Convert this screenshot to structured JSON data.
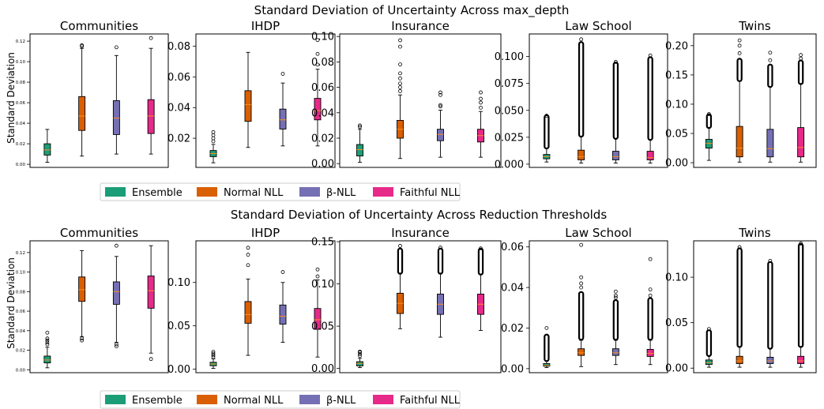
{
  "colors": {
    "Ensemble": "#1b9e77",
    "Normal NLL": "#d95f02",
    "β-NLL": "#7570b3",
    "Faithful NLL": "#e7298a",
    "median": "#ff8c1a"
  },
  "legend": {
    "placement": "below-row",
    "entries": [
      "Ensemble",
      "Normal NLL",
      "β-NLL",
      "Faithful NLL"
    ]
  },
  "rows": [
    {
      "title": "Standard Deviation of Uncertainty Across max_depth",
      "ylabel": "Standard Deviation"
    },
    {
      "title": "Standard Deviation of Uncertainty Across Reduction Thresholds",
      "ylabel": "Standard Deviation"
    }
  ],
  "chart_data": [
    {
      "type": "box",
      "row": 0,
      "col": 0,
      "title": "Communities",
      "ylabel": "Standard Deviation",
      "ylim": [
        -0.003,
        0.127
      ],
      "yticks": [
        0.0,
        0.02,
        0.04,
        0.06,
        0.08,
        0.1,
        0.12
      ],
      "tick_labels": [
        "0.00",
        "0.02",
        "0.04",
        "0.06",
        "0.08",
        "0.10",
        "0.12"
      ],
      "tick_size": "small",
      "series": [
        {
          "name": "Ensemble",
          "whislo": 0.002,
          "q1": 0.009,
          "med": 0.014,
          "q3": 0.02,
          "whishi": 0.034,
          "fliers": [],
          "dense": null
        },
        {
          "name": "Normal NLL",
          "whislo": 0.008,
          "q1": 0.033,
          "med": 0.047,
          "q3": 0.066,
          "whishi": 0.113,
          "fliers": [
            0.115,
            0.116
          ],
          "dense": null
        },
        {
          "name": "β-NLL",
          "whislo": 0.01,
          "q1": 0.029,
          "med": 0.045,
          "q3": 0.062,
          "whishi": 0.106,
          "fliers": [
            0.114
          ],
          "dense": null
        },
        {
          "name": "Faithful NLL",
          "whislo": 0.01,
          "q1": 0.03,
          "med": 0.047,
          "q3": 0.063,
          "whishi": 0.113,
          "fliers": [
            0.123
          ],
          "dense": null
        }
      ]
    },
    {
      "type": "box",
      "row": 0,
      "col": 1,
      "title": "IHDP",
      "ylim": [
        0.001,
        0.088
      ],
      "yticks": [
        0.02,
        0.04,
        0.06,
        0.08
      ],
      "tick_labels": [
        "0.02",
        "0.04",
        "0.06",
        "0.08"
      ],
      "tick_size": "normal",
      "series": [
        {
          "name": "Ensemble",
          "whislo": 0.004,
          "q1": 0.008,
          "med": 0.01,
          "q3": 0.012,
          "whishi": 0.016,
          "fliers": [
            0.018,
            0.02,
            0.022,
            0.024
          ],
          "dense": null
        },
        {
          "name": "Normal NLL",
          "whislo": 0.014,
          "q1": 0.031,
          "med": 0.042,
          "q3": 0.051,
          "whishi": 0.076,
          "fliers": [],
          "dense": null
        },
        {
          "name": "β-NLL",
          "whislo": 0.015,
          "q1": 0.026,
          "med": 0.032,
          "q3": 0.039,
          "whishi": 0.056,
          "fliers": [
            0.062
          ],
          "dense": null
        },
        {
          "name": "Faithful NLL",
          "whislo": 0.015,
          "q1": 0.032,
          "med": 0.038,
          "q3": 0.046,
          "whishi": 0.065,
          "fliers": [
            0.068,
            0.075,
            0.084
          ],
          "dense": null
        }
      ]
    },
    {
      "type": "box",
      "row": 0,
      "col": 2,
      "title": "Insurance",
      "ylim": [
        -0.003,
        0.102
      ],
      "yticks": [
        0.0,
        0.02,
        0.04,
        0.06,
        0.08,
        0.1
      ],
      "tick_labels": [
        "0.00",
        "0.02",
        "0.04",
        "0.06",
        "0.08",
        "0.10"
      ],
      "tick_size": "normal",
      "series": [
        {
          "name": "Ensemble",
          "whislo": 0.001,
          "q1": 0.006,
          "med": 0.011,
          "q3": 0.015,
          "whishi": 0.027,
          "fliers": [
            0.029,
            0.03
          ],
          "dense": null
        },
        {
          "name": "Normal NLL",
          "whislo": 0.004,
          "q1": 0.02,
          "med": 0.027,
          "q3": 0.034,
          "whishi": 0.054,
          "fliers": [
            0.057,
            0.06,
            0.063,
            0.067,
            0.071,
            0.078,
            0.092,
            0.097
          ],
          "dense": null
        },
        {
          "name": "β-NLL",
          "whislo": 0.005,
          "q1": 0.018,
          "med": 0.023,
          "q3": 0.027,
          "whishi": 0.042,
          "fliers": [
            0.045,
            0.046,
            0.054,
            0.056
          ],
          "dense": null
        },
        {
          "name": "Faithful NLL",
          "whislo": 0.005,
          "q1": 0.017,
          "med": 0.022,
          "q3": 0.027,
          "whishi": 0.041,
          "fliers": [
            0.044,
            0.048,
            0.051,
            0.056
          ],
          "dense": null
        }
      ]
    },
    {
      "type": "box",
      "row": 0,
      "col": 3,
      "title": "Law School",
      "ylim": [
        -0.003,
        0.121
      ],
      "yticks": [
        0.0,
        0.025,
        0.05,
        0.075,
        0.1
      ],
      "tick_labels": [
        "0.000",
        "0.025",
        "0.050",
        "0.075",
        "0.100"
      ],
      "tick_size": "normal",
      "series": [
        {
          "name": "Ensemble",
          "whislo": 0.002,
          "q1": 0.005,
          "med": 0.007,
          "q3": 0.009,
          "whishi": 0.015,
          "fliers": [
            0.045
          ],
          "dense": [
            0.016,
            0.044
          ]
        },
        {
          "name": "Normal NLL",
          "whislo": 0.001,
          "q1": 0.004,
          "med": 0.007,
          "q3": 0.013,
          "whishi": 0.026,
          "fliers": [
            0.116
          ],
          "dense": [
            0.027,
            0.112
          ]
        },
        {
          "name": "β-NLL",
          "whislo": 0.001,
          "q1": 0.004,
          "med": 0.007,
          "q3": 0.012,
          "whishi": 0.024,
          "fliers": [
            0.095
          ],
          "dense": [
            0.025,
            0.093
          ]
        },
        {
          "name": "Faithful NLL",
          "whislo": 0.001,
          "q1": 0.004,
          "med": 0.006,
          "q3": 0.012,
          "whishi": 0.023,
          "fliers": [
            0.101
          ],
          "dense": [
            0.024,
            0.098
          ]
        }
      ]
    },
    {
      "type": "box",
      "row": 0,
      "col": 4,
      "title": "Twins",
      "ylim": [
        -0.008,
        0.22
      ],
      "yticks": [
        0.0,
        0.05,
        0.1,
        0.15,
        0.2
      ],
      "tick_labels": [
        "0.00",
        "0.05",
        "0.10",
        "0.15",
        "0.20"
      ],
      "tick_size": "normal",
      "series": [
        {
          "name": "Ensemble",
          "whislo": 0.004,
          "q1": 0.025,
          "med": 0.033,
          "q3": 0.04,
          "whishi": 0.06,
          "fliers": [
            0.083
          ],
          "dense": [
            0.062,
            0.08
          ]
        },
        {
          "name": "Normal NLL",
          "whislo": 0.001,
          "q1": 0.01,
          "med": 0.025,
          "q3": 0.062,
          "whishi": 0.14,
          "fliers": [
            0.187,
            0.2,
            0.209
          ],
          "dense": [
            0.142,
            0.175
          ]
        },
        {
          "name": "β-NLL",
          "whislo": 0.001,
          "q1": 0.01,
          "med": 0.024,
          "q3": 0.057,
          "whishi": 0.13,
          "fliers": [
            0.175,
            0.188
          ],
          "dense": [
            0.132,
            0.165
          ]
        },
        {
          "name": "Faithful NLL",
          "whislo": 0.001,
          "q1": 0.01,
          "med": 0.026,
          "q3": 0.06,
          "whishi": 0.135,
          "fliers": [
            0.178,
            0.184
          ],
          "dense": [
            0.137,
            0.172
          ]
        }
      ]
    },
    {
      "type": "box",
      "row": 1,
      "col": 0,
      "title": "Communities",
      "ylabel": "Standard Deviation",
      "ylim": [
        -0.003,
        0.132
      ],
      "yticks": [
        0.0,
        0.02,
        0.04,
        0.06,
        0.08,
        0.1,
        0.12
      ],
      "tick_labels": [
        "0.00",
        "0.02",
        "0.04",
        "0.06",
        "0.08",
        "0.10",
        "0.12"
      ],
      "tick_size": "small",
      "series": [
        {
          "name": "Ensemble",
          "whislo": 0.002,
          "q1": 0.007,
          "med": 0.01,
          "q3": 0.014,
          "whishi": 0.023,
          "fliers": [
            0.026,
            0.028,
            0.03,
            0.032,
            0.038
          ],
          "dense": null
        },
        {
          "name": "Normal NLL",
          "whislo": 0.034,
          "q1": 0.07,
          "med": 0.082,
          "q3": 0.095,
          "whishi": 0.122,
          "fliers": [
            0.03,
            0.032
          ],
          "dense": null
        },
        {
          "name": "β-NLL",
          "whislo": 0.028,
          "q1": 0.067,
          "med": 0.08,
          "q3": 0.09,
          "whishi": 0.116,
          "fliers": [
            0.024,
            0.026,
            0.127
          ],
          "dense": null
        },
        {
          "name": "Faithful NLL",
          "whislo": 0.017,
          "q1": 0.063,
          "med": 0.081,
          "q3": 0.096,
          "whishi": 0.127,
          "fliers": [
            0.011
          ],
          "dense": null
        }
      ]
    },
    {
      "type": "box",
      "row": 1,
      "col": 1,
      "title": "IHDP",
      "ylim": [
        -0.004,
        0.148
      ],
      "yticks": [
        0.0,
        0.05,
        0.1
      ],
      "tick_labels": [
        "0.00",
        "0.05",
        "0.10"
      ],
      "tick_size": "normal",
      "series": [
        {
          "name": "Ensemble",
          "whislo": 0.001,
          "q1": 0.004,
          "med": 0.006,
          "q3": 0.008,
          "whishi": 0.012,
          "fliers": [
            0.014,
            0.016,
            0.018,
            0.02
          ],
          "dense": null
        },
        {
          "name": "Normal NLL",
          "whislo": 0.016,
          "q1": 0.053,
          "med": 0.063,
          "q3": 0.078,
          "whishi": 0.104,
          "fliers": [
            0.12,
            0.132,
            0.14
          ],
          "dense": null
        },
        {
          "name": "β-NLL",
          "whislo": 0.031,
          "q1": 0.052,
          "med": 0.061,
          "q3": 0.074,
          "whishi": 0.1,
          "fliers": [
            0.112
          ],
          "dense": null
        },
        {
          "name": "Faithful NLL",
          "whislo": 0.014,
          "q1": 0.046,
          "med": 0.057,
          "q3": 0.07,
          "whishi": 0.103,
          "fliers": [
            0.107,
            0.115
          ],
          "dense": null
        }
      ]
    },
    {
      "type": "box",
      "row": 1,
      "col": 2,
      "title": "Insurance",
      "ylim": [
        -0.005,
        0.151
      ],
      "yticks": [
        0.0,
        0.05,
        0.1,
        0.15
      ],
      "tick_labels": [
        "0.00",
        "0.05",
        "0.10",
        "0.15"
      ],
      "tick_size": "normal",
      "series": [
        {
          "name": "Ensemble",
          "whislo": 0.001,
          "q1": 0.003,
          "med": 0.006,
          "q3": 0.008,
          "whishi": 0.012,
          "fliers": [
            0.015,
            0.017,
            0.019,
            0.02
          ],
          "dense": null
        },
        {
          "name": "Normal NLL",
          "whislo": 0.047,
          "q1": 0.065,
          "med": 0.077,
          "q3": 0.089,
          "whishi": 0.112,
          "fliers": [
            0.145
          ],
          "dense": [
            0.114,
            0.14
          ]
        },
        {
          "name": "β-NLL",
          "whislo": 0.037,
          "q1": 0.064,
          "med": 0.076,
          "q3": 0.088,
          "whishi": 0.112,
          "fliers": [
            0.143
          ],
          "dense": [
            0.114,
            0.14
          ]
        },
        {
          "name": "Faithful NLL",
          "whislo": 0.045,
          "q1": 0.064,
          "med": 0.076,
          "q3": 0.088,
          "whishi": 0.111,
          "fliers": [
            0.142
          ],
          "dense": [
            0.113,
            0.14
          ]
        }
      ]
    },
    {
      "type": "box",
      "row": 1,
      "col": 3,
      "title": "Law School",
      "ylim": [
        -0.002,
        0.063
      ],
      "yticks": [
        0.0,
        0.02,
        0.04,
        0.06
      ],
      "tick_labels": [
        "0.00",
        "0.02",
        "0.04",
        "0.06"
      ],
      "tick_size": "normal",
      "series": [
        {
          "name": "Ensemble",
          "whislo": 0.0005,
          "q1": 0.0012,
          "med": 0.0016,
          "q3": 0.0025,
          "whishi": 0.004,
          "fliers": [
            0.02
          ],
          "dense": [
            0.0045,
            0.016
          ]
        },
        {
          "name": "Normal NLL",
          "whislo": 0.001,
          "q1": 0.0065,
          "med": 0.0078,
          "q3": 0.0098,
          "whishi": 0.014,
          "fliers": [
            0.04,
            0.042,
            0.045,
            0.061
          ],
          "dense": [
            0.015,
            0.037
          ]
        },
        {
          "name": "β-NLL",
          "whislo": 0.002,
          "q1": 0.0065,
          "med": 0.0078,
          "q3": 0.0098,
          "whishi": 0.014,
          "fliers": [
            0.035,
            0.036,
            0.038
          ],
          "dense": [
            0.015,
            0.033
          ]
        },
        {
          "name": "Faithful NLL",
          "whislo": 0.002,
          "q1": 0.006,
          "med": 0.0075,
          "q3": 0.0095,
          "whishi": 0.014,
          "fliers": [
            0.036,
            0.039,
            0.054
          ],
          "dense": [
            0.015,
            0.034
          ]
        }
      ]
    },
    {
      "type": "box",
      "row": 1,
      "col": 4,
      "title": "Twins",
      "ylim": [
        -0.005,
        0.14
      ],
      "yticks": [
        0.0,
        0.05,
        0.1
      ],
      "tick_labels": [
        "0.00",
        "0.05",
        "0.10"
      ],
      "tick_size": "normal",
      "series": [
        {
          "name": "Ensemble",
          "whislo": 0.001,
          "q1": 0.004,
          "med": 0.006,
          "q3": 0.009,
          "whishi": 0.014,
          "fliers": [
            0.043
          ],
          "dense": [
            0.015,
            0.04
          ]
        },
        {
          "name": "Normal NLL",
          "whislo": 0.001,
          "q1": 0.005,
          "med": 0.008,
          "q3": 0.013,
          "whishi": 0.024,
          "fliers": [
            0.133
          ],
          "dense": [
            0.025,
            0.13
          ]
        },
        {
          "name": "β-NLL",
          "whislo": 0.001,
          "q1": 0.005,
          "med": 0.008,
          "q3": 0.012,
          "whishi": 0.022,
          "fliers": [
            0.118
          ],
          "dense": [
            0.023,
            0.115
          ]
        },
        {
          "name": "Faithful NLL",
          "whislo": 0.001,
          "q1": 0.005,
          "med": 0.008,
          "q3": 0.013,
          "whishi": 0.024,
          "fliers": [
            0.137
          ],
          "dense": [
            0.025,
            0.135
          ]
        }
      ]
    }
  ]
}
